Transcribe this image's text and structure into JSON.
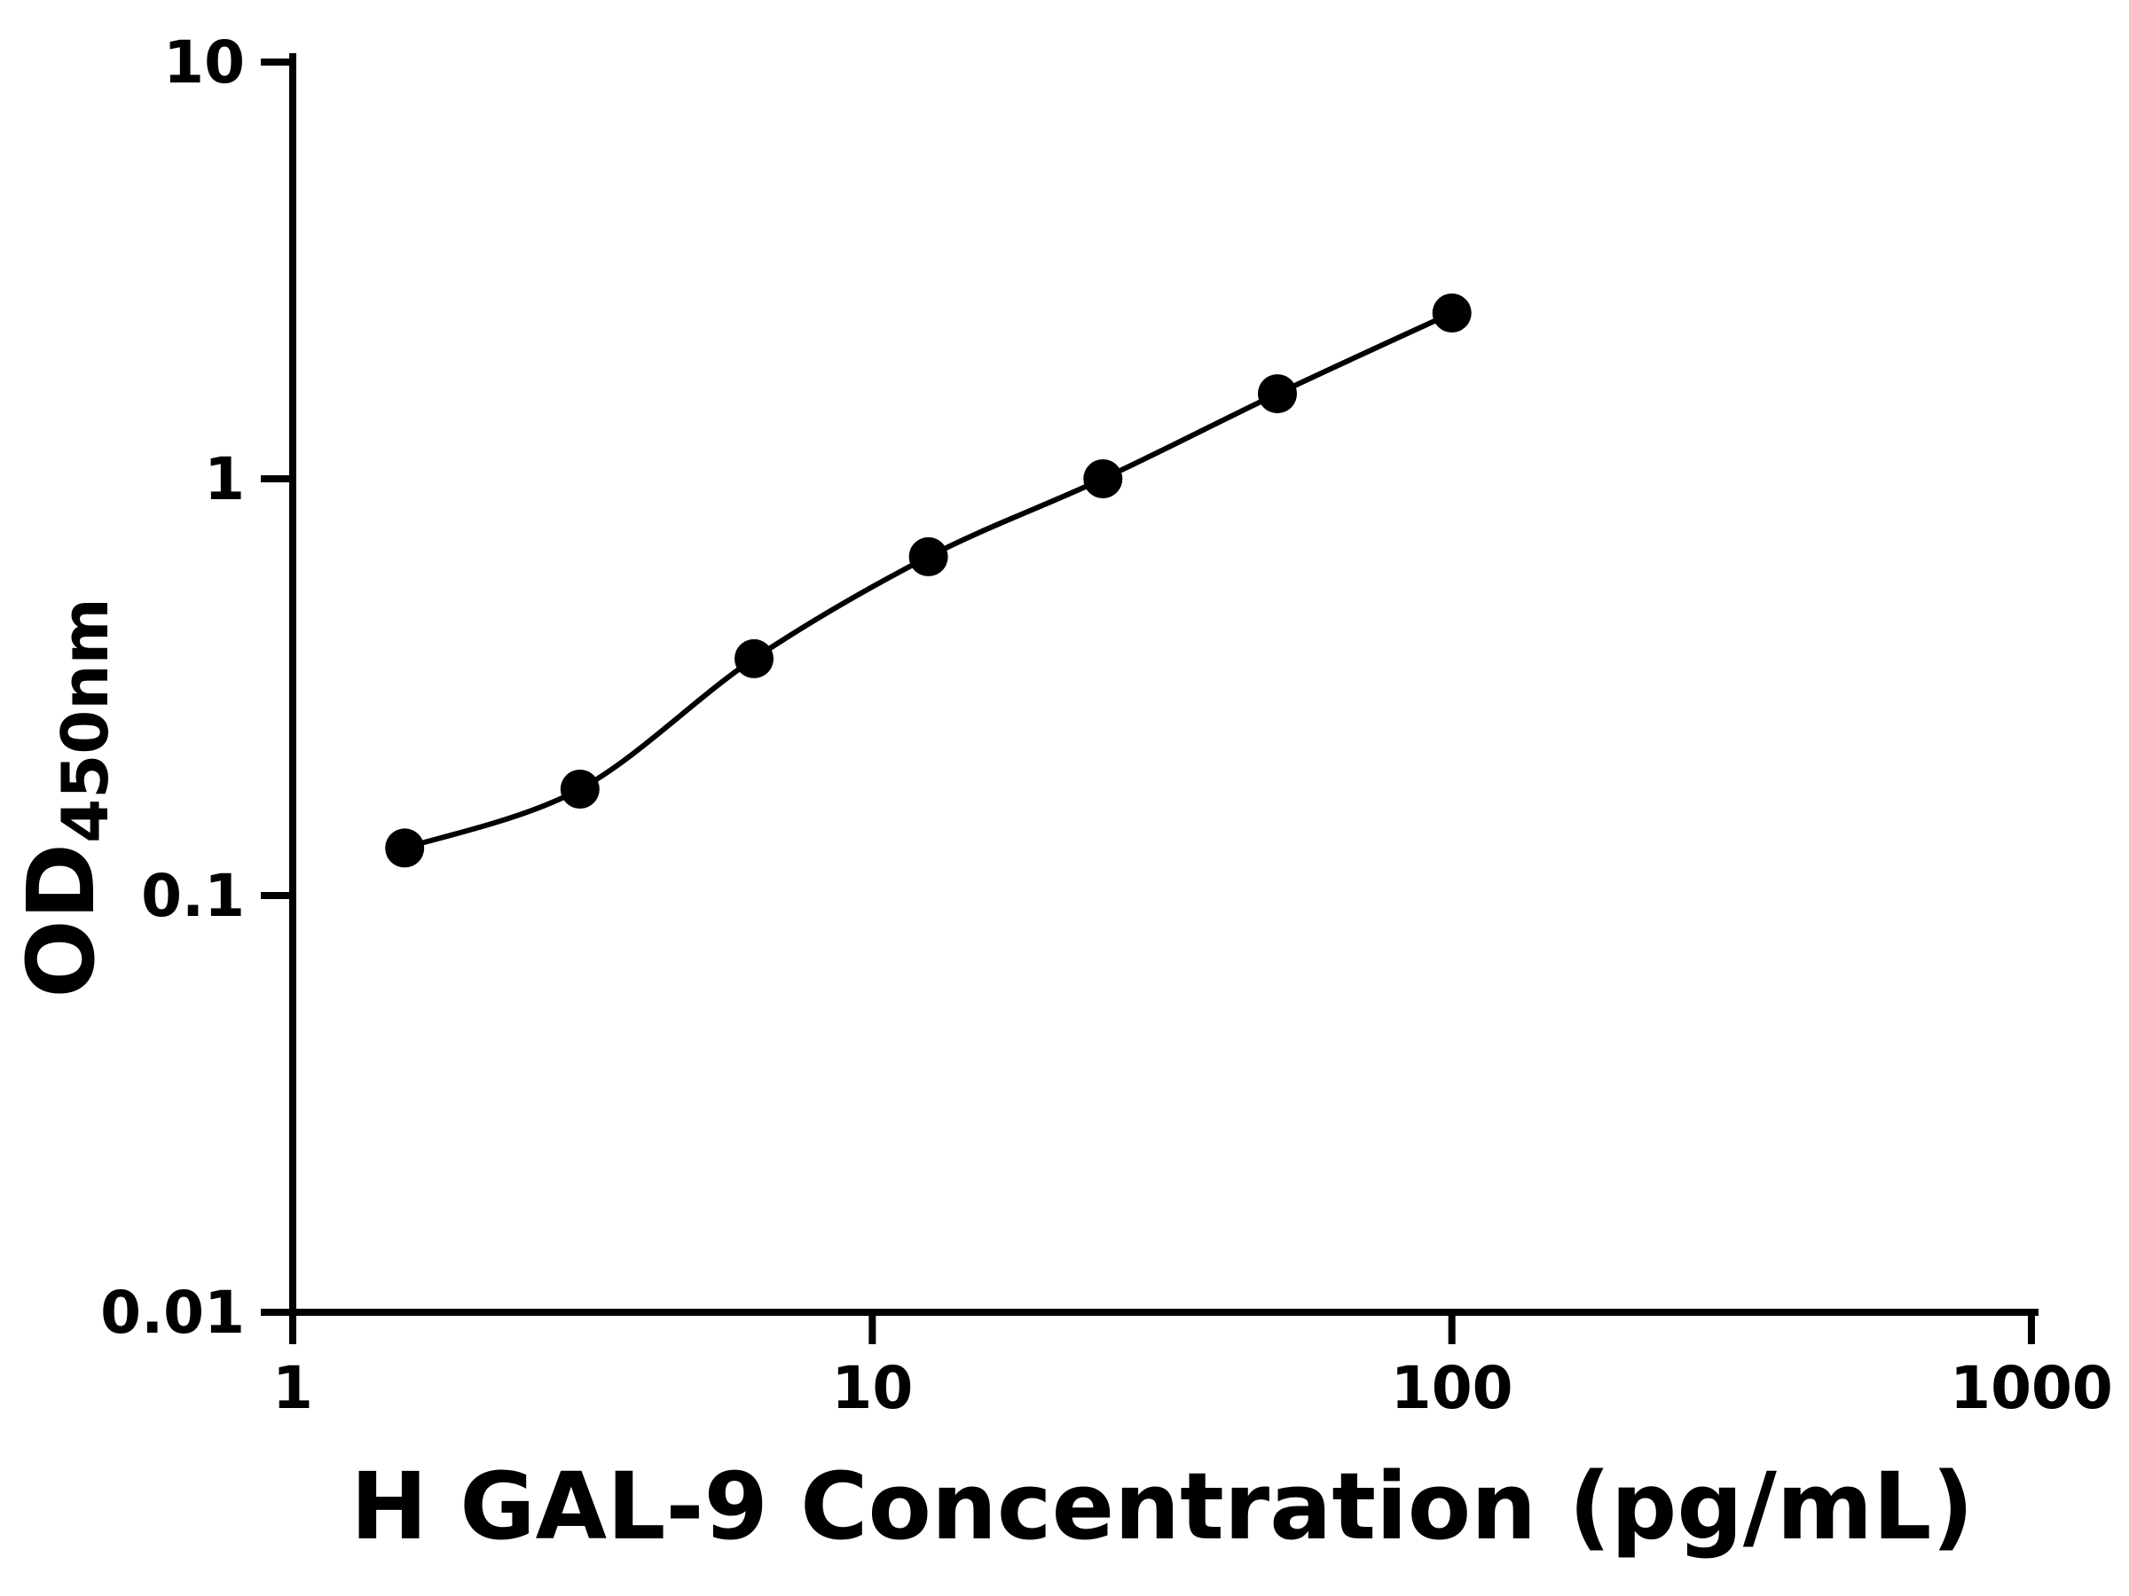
{
  "chart": {
    "ylabel_main": "OD",
    "ylabel_sub": "450nm"
  },
  "chart_data": {
    "type": "scatter",
    "title": "",
    "xlabel": "H GAL-9 Concentration (pg/mL)",
    "ylabel": "OD450nm",
    "xscale": "log",
    "yscale": "log",
    "xlim": [
      1,
      1000
    ],
    "ylim": [
      0.01,
      10
    ],
    "x_ticks": [
      1,
      10,
      100,
      1000
    ],
    "x_tick_labels": [
      "1",
      "10",
      "100",
      "1000"
    ],
    "y_ticks": [
      10,
      1,
      0.1,
      0.01
    ],
    "y_tick_labels": [
      "10",
      "1",
      "0.1",
      "0.01"
    ],
    "x": [
      1.56,
      3.13,
      6.25,
      12.5,
      25,
      50,
      100
    ],
    "y": [
      0.13,
      0.18,
      0.37,
      0.65,
      1.0,
      1.6,
      2.5
    ],
    "fit_line": "smooth curve through all points",
    "marker": "filled circle",
    "marker_color": "#000000",
    "line_color": "#000000",
    "background_color": "#ffffff",
    "grid": false,
    "legend": null
  }
}
